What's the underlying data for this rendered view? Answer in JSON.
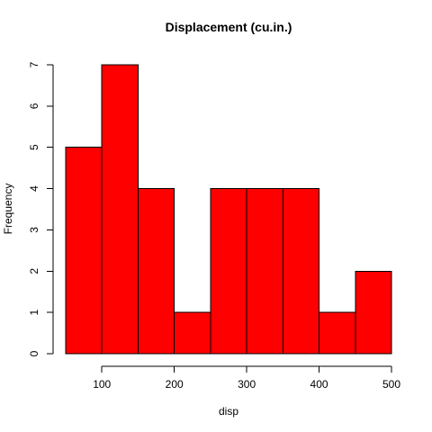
{
  "chart_data": {
    "type": "bar",
    "title": "Displacement (cu.in.)",
    "xlabel": "disp",
    "ylabel": "Frequency",
    "bin_edges": [
      50,
      100,
      150,
      200,
      250,
      300,
      350,
      400,
      450,
      500
    ],
    "values": [
      5,
      7,
      4,
      1,
      4,
      4,
      4,
      1,
      2
    ],
    "xlim": [
      50,
      500
    ],
    "ylim": [
      0,
      7
    ],
    "x_ticks": [
      100,
      200,
      300,
      400,
      500
    ],
    "y_ticks": [
      0,
      1,
      2,
      3,
      4,
      5,
      6,
      7
    ],
    "bar_color": "#ff0000",
    "grid": false
  }
}
